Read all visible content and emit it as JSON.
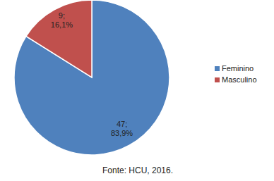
{
  "chart_data": {
    "type": "pie",
    "categories": [
      "Feminino",
      "Masculino"
    ],
    "values": [
      47,
      9
    ],
    "value_labels": [
      "47;",
      "9;"
    ],
    "percentages": [
      83.9,
      16.1
    ],
    "percent_labels": [
      "83,9%",
      "16,1%"
    ],
    "colors": [
      "#4f81bd",
      "#c0504d"
    ],
    "data_labels": true,
    "legend": "right",
    "caption": "Fonte: HCU, 2016."
  }
}
